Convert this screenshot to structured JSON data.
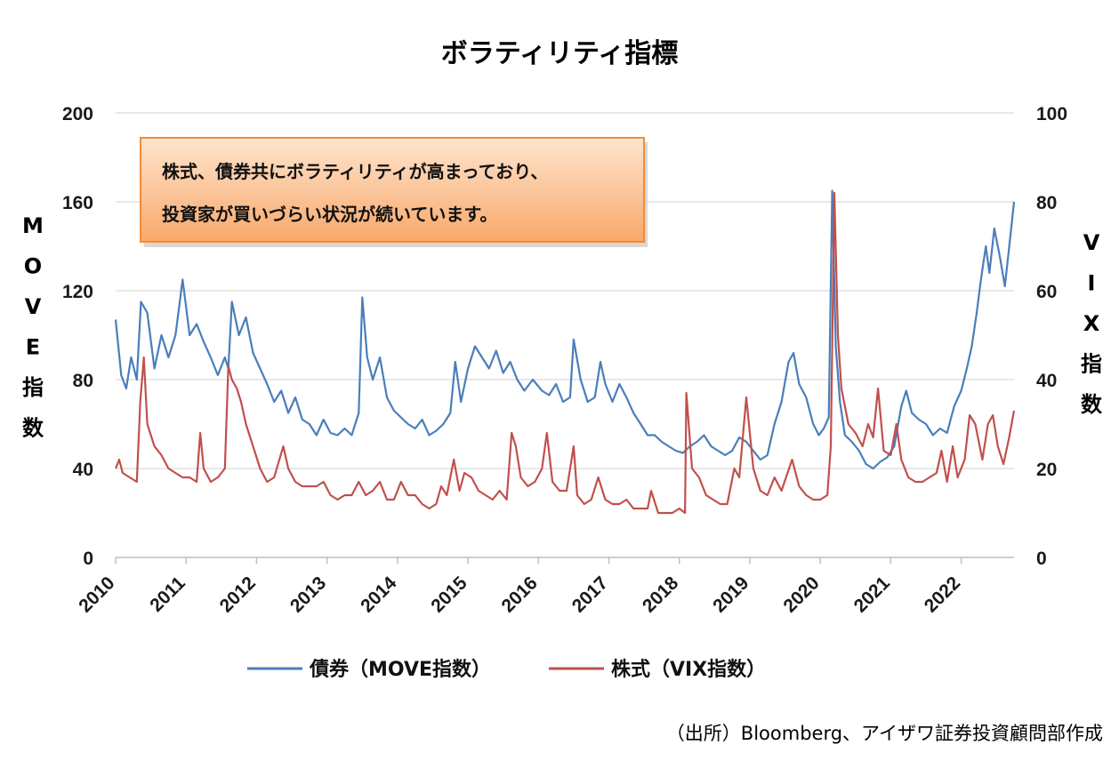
{
  "chart_data": {
    "type": "line",
    "title": "ボラティリティ指標",
    "left_axis": {
      "label": "MOVE指数",
      "ylim": [
        0,
        200
      ],
      "ticks": [
        0,
        40,
        80,
        120,
        160,
        200
      ]
    },
    "right_axis": {
      "label": "VIX指数",
      "ylim": [
        0,
        100
      ],
      "ticks": [
        0,
        20,
        40,
        60,
        80,
        100
      ]
    },
    "x_ticks": [
      "2010",
      "2011",
      "2012",
      "2013",
      "2014",
      "2015",
      "2016",
      "2017",
      "2018",
      "2019",
      "2020",
      "2021",
      "2022"
    ],
    "xlim": [
      2010.0,
      2022.75
    ],
    "grid": true,
    "legend_position": "bottom",
    "annotation": [
      "株式、債券共にボラティリティが高まっており、",
      "投資家が買いづらい状況が続いています。"
    ],
    "series": [
      {
        "name": "債券（MOVE指数）",
        "axis": "left",
        "color": "#4a7ebb",
        "points": [
          [
            2010.0,
            107
          ],
          [
            2010.08,
            82
          ],
          [
            2010.15,
            76
          ],
          [
            2010.22,
            90
          ],
          [
            2010.3,
            80
          ],
          [
            2010.36,
            115
          ],
          [
            2010.45,
            110
          ],
          [
            2010.55,
            85
          ],
          [
            2010.65,
            100
          ],
          [
            2010.75,
            90
          ],
          [
            2010.85,
            100
          ],
          [
            2010.95,
            125
          ],
          [
            2011.05,
            100
          ],
          [
            2011.15,
            105
          ],
          [
            2011.25,
            97
          ],
          [
            2011.35,
            90
          ],
          [
            2011.45,
            82
          ],
          [
            2011.55,
            90
          ],
          [
            2011.6,
            85
          ],
          [
            2011.65,
            115
          ],
          [
            2011.75,
            100
          ],
          [
            2011.85,
            108
          ],
          [
            2011.95,
            92
          ],
          [
            2012.05,
            85
          ],
          [
            2012.15,
            78
          ],
          [
            2012.25,
            70
          ],
          [
            2012.35,
            75
          ],
          [
            2012.45,
            65
          ],
          [
            2012.55,
            72
          ],
          [
            2012.65,
            62
          ],
          [
            2012.75,
            60
          ],
          [
            2012.85,
            55
          ],
          [
            2012.95,
            62
          ],
          [
            2013.05,
            56
          ],
          [
            2013.15,
            55
          ],
          [
            2013.25,
            58
          ],
          [
            2013.35,
            55
          ],
          [
            2013.45,
            65
          ],
          [
            2013.5,
            117
          ],
          [
            2013.57,
            90
          ],
          [
            2013.65,
            80
          ],
          [
            2013.75,
            90
          ],
          [
            2013.85,
            72
          ],
          [
            2013.95,
            66
          ],
          [
            2014.05,
            63
          ],
          [
            2014.15,
            60
          ],
          [
            2014.25,
            58
          ],
          [
            2014.35,
            62
          ],
          [
            2014.45,
            55
          ],
          [
            2014.55,
            57
          ],
          [
            2014.65,
            60
          ],
          [
            2014.75,
            65
          ],
          [
            2014.82,
            88
          ],
          [
            2014.9,
            70
          ],
          [
            2015.0,
            85
          ],
          [
            2015.1,
            95
          ],
          [
            2015.2,
            90
          ],
          [
            2015.3,
            85
          ],
          [
            2015.4,
            93
          ],
          [
            2015.5,
            83
          ],
          [
            2015.6,
            88
          ],
          [
            2015.7,
            80
          ],
          [
            2015.8,
            75
          ],
          [
            2015.92,
            80
          ],
          [
            2016.05,
            75
          ],
          [
            2016.15,
            73
          ],
          [
            2016.25,
            78
          ],
          [
            2016.35,
            70
          ],
          [
            2016.45,
            72
          ],
          [
            2016.5,
            98
          ],
          [
            2016.6,
            80
          ],
          [
            2016.7,
            70
          ],
          [
            2016.8,
            72
          ],
          [
            2016.88,
            88
          ],
          [
            2016.95,
            78
          ],
          [
            2017.05,
            70
          ],
          [
            2017.15,
            78
          ],
          [
            2017.25,
            72
          ],
          [
            2017.35,
            65
          ],
          [
            2017.45,
            60
          ],
          [
            2017.55,
            55
          ],
          [
            2017.65,
            55
          ],
          [
            2017.75,
            52
          ],
          [
            2017.85,
            50
          ],
          [
            2017.95,
            48
          ],
          [
            2018.05,
            47
          ],
          [
            2018.15,
            50
          ],
          [
            2018.25,
            52
          ],
          [
            2018.35,
            55
          ],
          [
            2018.45,
            50
          ],
          [
            2018.55,
            48
          ],
          [
            2018.65,
            46
          ],
          [
            2018.75,
            48
          ],
          [
            2018.85,
            54
          ],
          [
            2018.95,
            52
          ],
          [
            2019.05,
            48
          ],
          [
            2019.15,
            44
          ],
          [
            2019.25,
            46
          ],
          [
            2019.35,
            60
          ],
          [
            2019.45,
            70
          ],
          [
            2019.55,
            88
          ],
          [
            2019.62,
            92
          ],
          [
            2019.7,
            78
          ],
          [
            2019.8,
            72
          ],
          [
            2019.9,
            60
          ],
          [
            2019.98,
            55
          ],
          [
            2020.05,
            58
          ],
          [
            2020.12,
            63
          ],
          [
            2020.17,
            165
          ],
          [
            2020.22,
            95
          ],
          [
            2020.28,
            70
          ],
          [
            2020.35,
            55
          ],
          [
            2020.45,
            52
          ],
          [
            2020.55,
            48
          ],
          [
            2020.65,
            42
          ],
          [
            2020.75,
            40
          ],
          [
            2020.85,
            43
          ],
          [
            2020.95,
            45
          ],
          [
            2021.05,
            50
          ],
          [
            2021.15,
            68
          ],
          [
            2021.22,
            75
          ],
          [
            2021.3,
            65
          ],
          [
            2021.4,
            62
          ],
          [
            2021.5,
            60
          ],
          [
            2021.6,
            55
          ],
          [
            2021.7,
            58
          ],
          [
            2021.8,
            56
          ],
          [
            2021.9,
            68
          ],
          [
            2022.0,
            75
          ],
          [
            2022.08,
            85
          ],
          [
            2022.15,
            95
          ],
          [
            2022.22,
            110
          ],
          [
            2022.28,
            125
          ],
          [
            2022.35,
            140
          ],
          [
            2022.4,
            128
          ],
          [
            2022.47,
            148
          ],
          [
            2022.55,
            135
          ],
          [
            2022.62,
            122
          ],
          [
            2022.7,
            145
          ],
          [
            2022.75,
            160
          ]
        ]
      },
      {
        "name": "株式（VIX指数）",
        "axis": "right",
        "color": "#c0504d",
        "points": [
          [
            2010.0,
            20
          ],
          [
            2010.05,
            22
          ],
          [
            2010.1,
            19
          ],
          [
            2010.2,
            18
          ],
          [
            2010.3,
            17
          ],
          [
            2010.35,
            35
          ],
          [
            2010.4,
            45
          ],
          [
            2010.45,
            30
          ],
          [
            2010.55,
            25
          ],
          [
            2010.65,
            23
          ],
          [
            2010.75,
            20
          ],
          [
            2010.85,
            19
          ],
          [
            2010.95,
            18
          ],
          [
            2011.05,
            18
          ],
          [
            2011.15,
            17
          ],
          [
            2011.2,
            28
          ],
          [
            2011.25,
            20
          ],
          [
            2011.35,
            17
          ],
          [
            2011.45,
            18
          ],
          [
            2011.55,
            20
          ],
          [
            2011.6,
            43
          ],
          [
            2011.65,
            40
          ],
          [
            2011.72,
            38
          ],
          [
            2011.78,
            35
          ],
          [
            2011.85,
            30
          ],
          [
            2011.95,
            25
          ],
          [
            2012.05,
            20
          ],
          [
            2012.15,
            17
          ],
          [
            2012.25,
            18
          ],
          [
            2012.38,
            25
          ],
          [
            2012.45,
            20
          ],
          [
            2012.55,
            17
          ],
          [
            2012.65,
            16
          ],
          [
            2012.75,
            16
          ],
          [
            2012.85,
            16
          ],
          [
            2012.95,
            17
          ],
          [
            2013.05,
            14
          ],
          [
            2013.15,
            13
          ],
          [
            2013.25,
            14
          ],
          [
            2013.35,
            14
          ],
          [
            2013.45,
            17
          ],
          [
            2013.55,
            14
          ],
          [
            2013.65,
            15
          ],
          [
            2013.75,
            17
          ],
          [
            2013.85,
            13
          ],
          [
            2013.95,
            13
          ],
          [
            2014.05,
            17
          ],
          [
            2014.15,
            14
          ],
          [
            2014.25,
            14
          ],
          [
            2014.35,
            12
          ],
          [
            2014.45,
            11
          ],
          [
            2014.55,
            12
          ],
          [
            2014.62,
            16
          ],
          [
            2014.7,
            14
          ],
          [
            2014.8,
            22
          ],
          [
            2014.88,
            15
          ],
          [
            2014.95,
            19
          ],
          [
            2015.05,
            18
          ],
          [
            2015.15,
            15
          ],
          [
            2015.25,
            14
          ],
          [
            2015.35,
            13
          ],
          [
            2015.45,
            15
          ],
          [
            2015.55,
            13
          ],
          [
            2015.62,
            28
          ],
          [
            2015.68,
            25
          ],
          [
            2015.75,
            18
          ],
          [
            2015.85,
            16
          ],
          [
            2015.95,
            17
          ],
          [
            2016.05,
            20
          ],
          [
            2016.12,
            28
          ],
          [
            2016.2,
            17
          ],
          [
            2016.3,
            15
          ],
          [
            2016.4,
            15
          ],
          [
            2016.5,
            25
          ],
          [
            2016.55,
            14
          ],
          [
            2016.65,
            12
          ],
          [
            2016.75,
            13
          ],
          [
            2016.85,
            18
          ],
          [
            2016.95,
            13
          ],
          [
            2017.05,
            12
          ],
          [
            2017.15,
            12
          ],
          [
            2017.25,
            13
          ],
          [
            2017.35,
            11
          ],
          [
            2017.45,
            11
          ],
          [
            2017.55,
            11
          ],
          [
            2017.6,
            15
          ],
          [
            2017.7,
            10
          ],
          [
            2017.8,
            10
          ],
          [
            2017.9,
            10
          ],
          [
            2018.0,
            11
          ],
          [
            2018.08,
            10
          ],
          [
            2018.1,
            37
          ],
          [
            2018.18,
            20
          ],
          [
            2018.28,
            18
          ],
          [
            2018.38,
            14
          ],
          [
            2018.48,
            13
          ],
          [
            2018.58,
            12
          ],
          [
            2018.68,
            12
          ],
          [
            2018.78,
            20
          ],
          [
            2018.85,
            18
          ],
          [
            2018.95,
            36
          ],
          [
            2019.05,
            20
          ],
          [
            2019.15,
            15
          ],
          [
            2019.25,
            14
          ],
          [
            2019.35,
            18
          ],
          [
            2019.45,
            15
          ],
          [
            2019.6,
            22
          ],
          [
            2019.7,
            16
          ],
          [
            2019.8,
            14
          ],
          [
            2019.9,
            13
          ],
          [
            2020.0,
            13
          ],
          [
            2020.1,
            14
          ],
          [
            2020.15,
            25
          ],
          [
            2020.2,
            82
          ],
          [
            2020.25,
            50
          ],
          [
            2020.3,
            38
          ],
          [
            2020.4,
            30
          ],
          [
            2020.5,
            28
          ],
          [
            2020.6,
            25
          ],
          [
            2020.68,
            30
          ],
          [
            2020.75,
            27
          ],
          [
            2020.82,
            38
          ],
          [
            2020.9,
            24
          ],
          [
            2021.0,
            23
          ],
          [
            2021.08,
            30
          ],
          [
            2021.15,
            22
          ],
          [
            2021.25,
            18
          ],
          [
            2021.35,
            17
          ],
          [
            2021.45,
            17
          ],
          [
            2021.55,
            18
          ],
          [
            2021.65,
            19
          ],
          [
            2021.72,
            24
          ],
          [
            2021.8,
            17
          ],
          [
            2021.88,
            25
          ],
          [
            2021.95,
            18
          ],
          [
            2022.05,
            22
          ],
          [
            2022.12,
            32
          ],
          [
            2022.2,
            30
          ],
          [
            2022.3,
            22
          ],
          [
            2022.38,
            30
          ],
          [
            2022.45,
            32
          ],
          [
            2022.52,
            25
          ],
          [
            2022.6,
            21
          ],
          [
            2022.68,
            27
          ],
          [
            2022.75,
            33
          ]
        ]
      }
    ]
  },
  "source_note": "（出所）Bloomberg、アイザワ証券投資顧問部作成"
}
